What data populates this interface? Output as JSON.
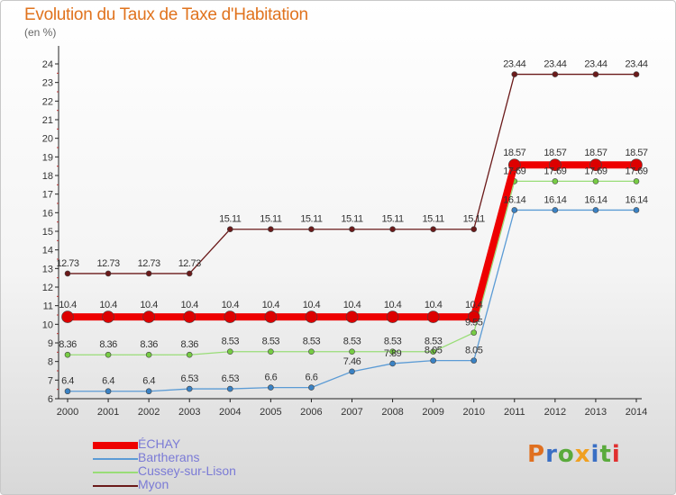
{
  "title": "Evolution du Taux de Taxe d'Habitation",
  "unit": "(en %)",
  "logo": "Proxiti",
  "chart_data": {
    "type": "line",
    "x": [
      "2000",
      "2001",
      "2002",
      "2003",
      "2004",
      "2005",
      "2006",
      "2007",
      "2008",
      "2009",
      "2010",
      "2011",
      "2012",
      "2013",
      "2014"
    ],
    "ylim": [
      6,
      24
    ],
    "yticks": [
      6,
      7,
      8,
      9,
      10,
      11,
      12,
      13,
      14,
      15,
      16,
      17,
      18,
      19,
      20,
      21,
      22,
      23,
      24
    ],
    "grid": false,
    "legend_position": "bottom-left",
    "series": [
      {
        "name": "Myon",
        "color": "#6b1a1a",
        "fill": "#6b1a1a",
        "width": 1.3,
        "r": 3,
        "values": [
          12.73,
          12.73,
          12.73,
          12.73,
          15.11,
          15.11,
          15.11,
          15.11,
          15.11,
          15.11,
          15.11,
          23.44,
          23.44,
          23.44,
          23.44
        ]
      },
      {
        "name": "Bartherans",
        "color": "#5b9bd5",
        "fill": "#3a82c4",
        "width": 1.3,
        "r": 3,
        "values": [
          6.4,
          6.4,
          6.4,
          6.53,
          6.53,
          6.6,
          6.6,
          7.46,
          7.89,
          8.05,
          8.05,
          16.14,
          16.14,
          16.14,
          16.14
        ]
      },
      {
        "name": "Cussey-sur-Lison",
        "color": "#99dd77",
        "fill": "#77cc44",
        "width": 1.3,
        "r": 3,
        "values": [
          8.36,
          8.36,
          8.36,
          8.36,
          8.53,
          8.53,
          8.53,
          8.53,
          8.53,
          8.53,
          9.55,
          17.69,
          17.69,
          17.69,
          17.69
        ]
      },
      {
        "name": "ÉCHAY",
        "color": "#ee0000",
        "fill": "#dd0000",
        "width": 8,
        "r": 6.5,
        "values": [
          10.4,
          10.4,
          10.4,
          10.4,
          10.4,
          10.4,
          10.4,
          10.4,
          10.4,
          10.4,
          10.4,
          18.57,
          18.57,
          18.57,
          18.57
        ]
      }
    ],
    "data_labels": {
      "Myon": [
        "12.73",
        "12.73",
        "12.73",
        "12.73",
        "15.11",
        "15.11",
        "15.11",
        "15.11",
        "15.11",
        "15.11",
        "15.11",
        "23.44",
        "23.44",
        "23.44",
        "23.44"
      ],
      "Bartherans": [
        "6.4",
        "6.4",
        "6.4",
        "6.53",
        "6.53",
        "6.6",
        "6.6",
        "7.46",
        "7.89",
        "8.05",
        "8.05",
        "16.14",
        "16.14",
        "16.14",
        "16.14"
      ],
      "Cussey-sur-Lison": [
        "8.36",
        "8.36",
        "8.36",
        "8.36",
        "8.53",
        "8.53",
        "8.53",
        "8.53",
        "8.53",
        "8.53",
        "9.55",
        "17.69",
        "17.69",
        "17.69",
        "17.69"
      ],
      "ÉCHAY": [
        "10.4",
        "10.4",
        "10.4",
        "10.4",
        "10.4",
        "10.4",
        "10.4",
        "10.4",
        "10.4",
        "10.4",
        "10.4",
        "18.57",
        "18.57",
        "18.57",
        "18.57"
      ]
    }
  },
  "legend": [
    {
      "label": "ÉCHAY",
      "color": "#ee0000",
      "thickness": 8
    },
    {
      "label": "Bartherans",
      "color": "#5b9bd5",
      "thickness": 2
    },
    {
      "label": "Cussey-sur-Lison",
      "color": "#99dd77",
      "thickness": 2
    },
    {
      "label": "Myon",
      "color": "#6b1a1a",
      "thickness": 2
    }
  ]
}
